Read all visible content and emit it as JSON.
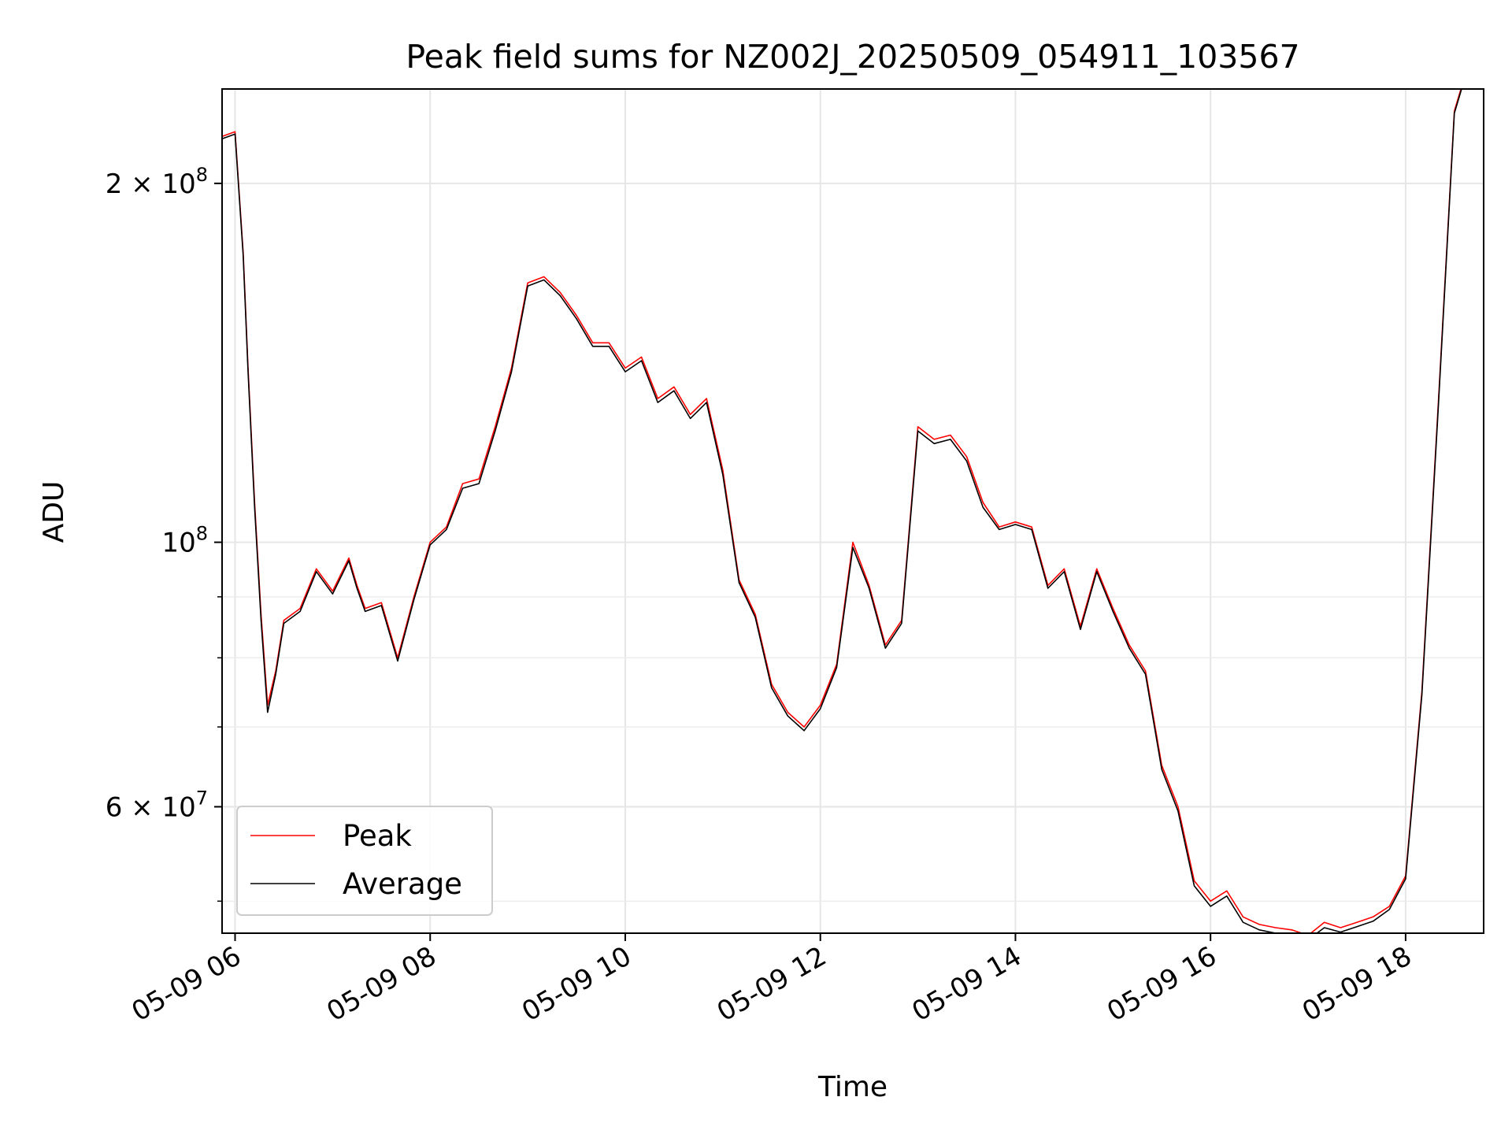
{
  "chart_data": {
    "type": "line",
    "title": "Peak field sums for NZ002J_20250509_054911_103567",
    "xlabel": "Time",
    "ylabel": "ADU",
    "y_scale": "log",
    "ylim": [
      47000000,
      240000000
    ],
    "xlim": [
      "2025-05-09 05:52",
      "2025-05-09 18:48"
    ],
    "grid": true,
    "legend_position": "lower-left",
    "x_ticks": [
      {
        "t": "2025-05-09 06:00",
        "label": "05-09 06"
      },
      {
        "t": "2025-05-09 08:00",
        "label": "05-09 08"
      },
      {
        "t": "2025-05-09 10:00",
        "label": "05-09 10"
      },
      {
        "t": "2025-05-09 12:00",
        "label": "05-09 12"
      },
      {
        "t": "2025-05-09 14:00",
        "label": "05-09 14"
      },
      {
        "t": "2025-05-09 16:00",
        "label": "05-09 16"
      },
      {
        "t": "2025-05-09 18:00",
        "label": "05-09 18"
      }
    ],
    "y_major_ticks": [
      {
        "v": 60000000,
        "mant": "6",
        "exp": "7"
      },
      {
        "v": 100000000,
        "mant": "",
        "exp": "8"
      },
      {
        "v": 200000000,
        "mant": "2",
        "exp": "8"
      }
    ],
    "y_minor_ticks": [
      50000000,
      70000000,
      80000000,
      90000000
    ],
    "series": [
      {
        "name": "Peak",
        "color": "#ff0000",
        "x": [
          "2025-05-09 05:52",
          "2025-05-09 06:00",
          "2025-05-09 06:05",
          "2025-05-09 06:08",
          "2025-05-09 06:12",
          "2025-05-09 06:16",
          "2025-05-09 06:20",
          "2025-05-09 06:25",
          "2025-05-09 06:30",
          "2025-05-09 06:40",
          "2025-05-09 06:50",
          "2025-05-09 07:00",
          "2025-05-09 07:10",
          "2025-05-09 07:15",
          "2025-05-09 07:20",
          "2025-05-09 07:30",
          "2025-05-09 07:40",
          "2025-05-09 07:50",
          "2025-05-09 08:00",
          "2025-05-09 08:10",
          "2025-05-09 08:20",
          "2025-05-09 08:30",
          "2025-05-09 08:40",
          "2025-05-09 08:50",
          "2025-05-09 09:00",
          "2025-05-09 09:10",
          "2025-05-09 09:20",
          "2025-05-09 09:30",
          "2025-05-09 09:40",
          "2025-05-09 09:50",
          "2025-05-09 10:00",
          "2025-05-09 10:10",
          "2025-05-09 10:20",
          "2025-05-09 10:30",
          "2025-05-09 10:40",
          "2025-05-09 10:50",
          "2025-05-09 11:00",
          "2025-05-09 11:10",
          "2025-05-09 11:20",
          "2025-05-09 11:30",
          "2025-05-09 11:40",
          "2025-05-09 11:50",
          "2025-05-09 12:00",
          "2025-05-09 12:10",
          "2025-05-09 12:20",
          "2025-05-09 12:30",
          "2025-05-09 12:40",
          "2025-05-09 12:50",
          "2025-05-09 13:00",
          "2025-05-09 13:10",
          "2025-05-09 13:20",
          "2025-05-09 13:30",
          "2025-05-09 13:40",
          "2025-05-09 13:50",
          "2025-05-09 14:00",
          "2025-05-09 14:10",
          "2025-05-09 14:20",
          "2025-05-09 14:30",
          "2025-05-09 14:40",
          "2025-05-09 14:50",
          "2025-05-09 15:00",
          "2025-05-09 15:10",
          "2025-05-09 15:20",
          "2025-05-09 15:30",
          "2025-05-09 15:40",
          "2025-05-09 15:50",
          "2025-05-09 16:00",
          "2025-05-09 16:10",
          "2025-05-09 16:20",
          "2025-05-09 16:30",
          "2025-05-09 16:40",
          "2025-05-09 16:50",
          "2025-05-09 17:00",
          "2025-05-09 17:10",
          "2025-05-09 17:20",
          "2025-05-09 17:30",
          "2025-05-09 17:40",
          "2025-05-09 17:50",
          "2025-05-09 18:00",
          "2025-05-09 18:10",
          "2025-05-09 18:20",
          "2025-05-09 18:30",
          "2025-05-09 18:36"
        ],
        "values": [
          219000000,
          221000000,
          175000000,
          140000000,
          108000000,
          87000000,
          73000000,
          78000000,
          86000000,
          88000000,
          95000000,
          91000000,
          97000000,
          92000000,
          88000000,
          89000000,
          80000000,
          90000000,
          100000000,
          103000000,
          112000000,
          113000000,
          125000000,
          140000000,
          165000000,
          167000000,
          162000000,
          155000000,
          147000000,
          147000000,
          140000000,
          143000000,
          132000000,
          135000000,
          128000000,
          132000000,
          115000000,
          93000000,
          87000000,
          76000000,
          72000000,
          70000000,
          73000000,
          79000000,
          100000000,
          92000000,
          82000000,
          86000000,
          125000000,
          122000000,
          123000000,
          118000000,
          108000000,
          103000000,
          104000000,
          103000000,
          92000000,
          95000000,
          85000000,
          95000000,
          88000000,
          82000000,
          78000000,
          65000000,
          60000000,
          52000000,
          50000000,
          51000000,
          48500000,
          47800000,
          47500000,
          47300000,
          46800000,
          48000000,
          47500000,
          48000000,
          48500000,
          49500000,
          52500000,
          75000000,
          130000000,
          230000000,
          245000000
        ]
      },
      {
        "name": "Average",
        "color": "#000000",
        "x": [
          "2025-05-09 05:52",
          "2025-05-09 06:00",
          "2025-05-09 06:05",
          "2025-05-09 06:08",
          "2025-05-09 06:12",
          "2025-05-09 06:16",
          "2025-05-09 06:20",
          "2025-05-09 06:25",
          "2025-05-09 06:30",
          "2025-05-09 06:40",
          "2025-05-09 06:50",
          "2025-05-09 07:00",
          "2025-05-09 07:10",
          "2025-05-09 07:15",
          "2025-05-09 07:20",
          "2025-05-09 07:30",
          "2025-05-09 07:40",
          "2025-05-09 07:50",
          "2025-05-09 08:00",
          "2025-05-09 08:10",
          "2025-05-09 08:20",
          "2025-05-09 08:30",
          "2025-05-09 08:40",
          "2025-05-09 08:50",
          "2025-05-09 09:00",
          "2025-05-09 09:10",
          "2025-05-09 09:20",
          "2025-05-09 09:30",
          "2025-05-09 09:40",
          "2025-05-09 09:50",
          "2025-05-09 10:00",
          "2025-05-09 10:10",
          "2025-05-09 10:20",
          "2025-05-09 10:30",
          "2025-05-09 10:40",
          "2025-05-09 10:50",
          "2025-05-09 11:00",
          "2025-05-09 11:10",
          "2025-05-09 11:20",
          "2025-05-09 11:30",
          "2025-05-09 11:40",
          "2025-05-09 11:50",
          "2025-05-09 12:00",
          "2025-05-09 12:10",
          "2025-05-09 12:20",
          "2025-05-09 12:30",
          "2025-05-09 12:40",
          "2025-05-09 12:50",
          "2025-05-09 13:00",
          "2025-05-09 13:10",
          "2025-05-09 13:20",
          "2025-05-09 13:30",
          "2025-05-09 13:40",
          "2025-05-09 13:50",
          "2025-05-09 14:00",
          "2025-05-09 14:10",
          "2025-05-09 14:20",
          "2025-05-09 14:30",
          "2025-05-09 14:40",
          "2025-05-09 14:50",
          "2025-05-09 15:00",
          "2025-05-09 15:10",
          "2025-05-09 15:20",
          "2025-05-09 15:30",
          "2025-05-09 15:40",
          "2025-05-09 15:50",
          "2025-05-09 16:00",
          "2025-05-09 16:10",
          "2025-05-09 16:20",
          "2025-05-09 16:30",
          "2025-05-09 16:40",
          "2025-05-09 16:50",
          "2025-05-09 17:00",
          "2025-05-09 17:10",
          "2025-05-09 17:20",
          "2025-05-09 17:30",
          "2025-05-09 17:40",
          "2025-05-09 17:50",
          "2025-05-09 18:00",
          "2025-05-09 18:10",
          "2025-05-09 18:20",
          "2025-05-09 18:30",
          "2025-05-09 18:36"
        ],
        "values": [
          218000000,
          220000000,
          174000000,
          139000000,
          107000000,
          86000000,
          72000000,
          77500000,
          85500000,
          87500000,
          94500000,
          90500000,
          96500000,
          91500000,
          87500000,
          88500000,
          79500000,
          89500000,
          99500000,
          102500000,
          111000000,
          112000000,
          124000000,
          139000000,
          164000000,
          166000000,
          161000000,
          154000000,
          146000000,
          146000000,
          139000000,
          142000000,
          131000000,
          134000000,
          127000000,
          131000000,
          114000000,
          92500000,
          86500000,
          75500000,
          71500000,
          69500000,
          72500000,
          78500000,
          99000000,
          91500000,
          81500000,
          85500000,
          124000000,
          121000000,
          122000000,
          117000000,
          107000000,
          102500000,
          103500000,
          102500000,
          91500000,
          94500000,
          84500000,
          94500000,
          87500000,
          81500000,
          77500000,
          64500000,
          59500000,
          51500000,
          49500000,
          50500000,
          48000000,
          47300000,
          47000000,
          46800000,
          46400000,
          47500000,
          47100000,
          47600000,
          48100000,
          49200000,
          52200000,
          74500000,
          129000000,
          229000000,
          244000000
        ]
      }
    ]
  }
}
